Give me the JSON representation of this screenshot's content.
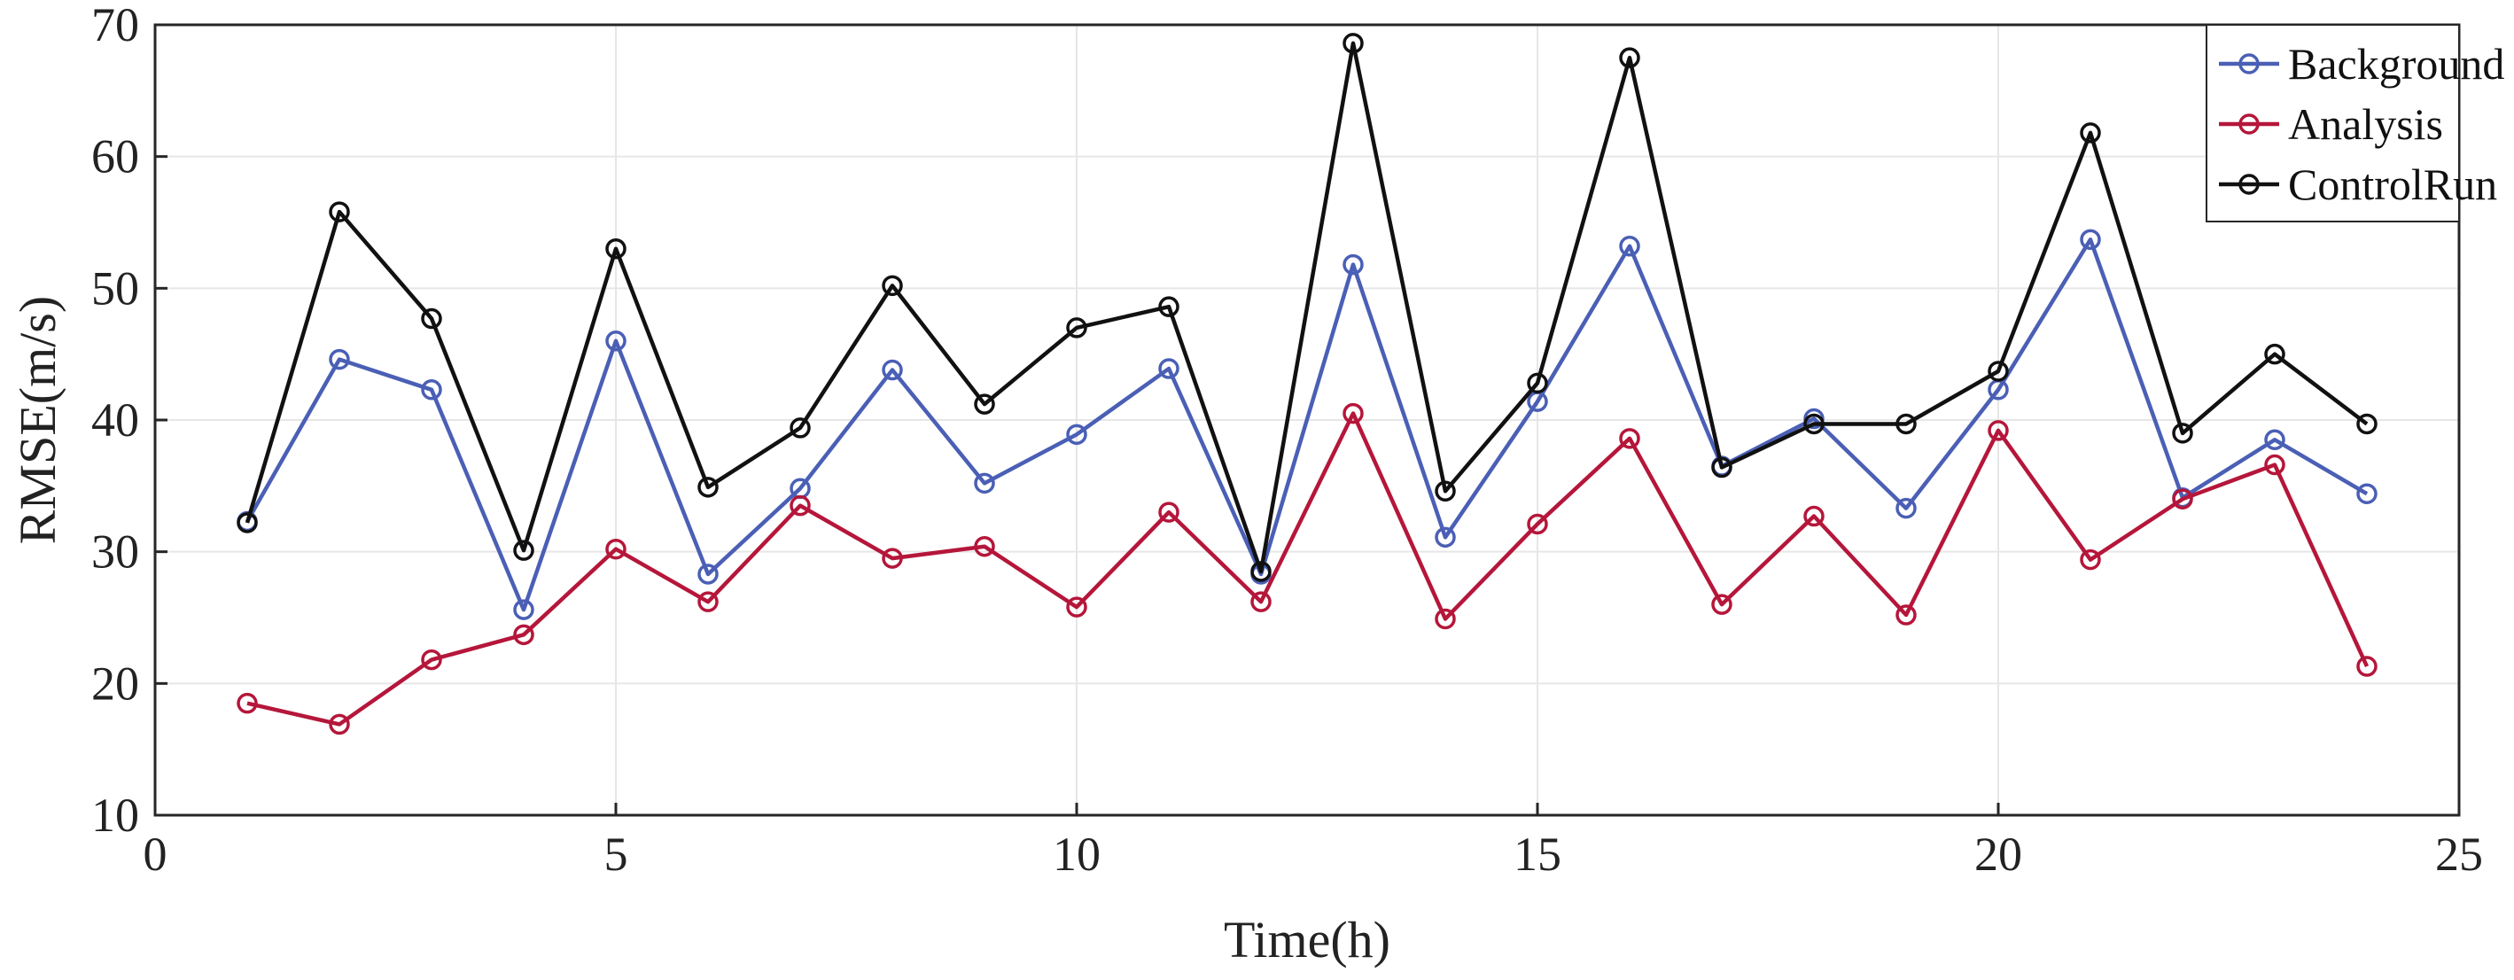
{
  "chart_data": {
    "type": "line",
    "title": "",
    "xlabel": "Time(h)",
    "ylabel": "RMSE(m/s)",
    "xlim": [
      0,
      25
    ],
    "ylim": [
      10,
      70
    ],
    "xticks": [
      0,
      5,
      10,
      15,
      20,
      25
    ],
    "yticks": [
      10,
      20,
      30,
      40,
      50,
      60,
      70
    ],
    "xtick_labels": [
      "0",
      "5",
      "10",
      "15",
      "20",
      "25"
    ],
    "ytick_labels": [
      "10",
      "20",
      "30",
      "40",
      "50",
      "60",
      "70"
    ],
    "grid": true,
    "legend_position": "top-right",
    "x": [
      1,
      2,
      3,
      4,
      5,
      6,
      7,
      8,
      9,
      10,
      11,
      12,
      13,
      14,
      15,
      16,
      17,
      18,
      19,
      20,
      21,
      22,
      23,
      24
    ],
    "series": [
      {
        "name": "Background",
        "color": "#4a5fb5",
        "marker": "circle",
        "values": [
          32.3,
          44.6,
          42.3,
          25.6,
          46.0,
          28.3,
          34.8,
          43.8,
          35.2,
          38.9,
          43.9,
          28.3,
          51.8,
          31.1,
          41.4,
          53.2,
          36.5,
          40.1,
          33.3,
          42.3,
          53.7,
          34.1,
          38.5,
          34.4
        ]
      },
      {
        "name": "Analysis",
        "color": "#b5163a",
        "marker": "circle",
        "values": [
          18.5,
          16.9,
          21.8,
          23.7,
          30.2,
          26.2,
          33.5,
          29.5,
          30.4,
          25.8,
          33.0,
          26.2,
          40.5,
          24.9,
          32.1,
          38.6,
          26.0,
          32.7,
          25.2,
          39.2,
          29.4,
          34.0,
          36.6,
          21.3
        ]
      },
      {
        "name": "ControlRun",
        "color": "#111111",
        "marker": "circle",
        "values": [
          32.2,
          55.8,
          47.7,
          30.1,
          53.0,
          34.9,
          39.4,
          50.2,
          41.2,
          47.0,
          48.6,
          28.5,
          68.6,
          34.6,
          42.8,
          67.5,
          36.4,
          39.7,
          39.7,
          43.7,
          61.8,
          39.0,
          45.0,
          39.7
        ]
      }
    ]
  }
}
